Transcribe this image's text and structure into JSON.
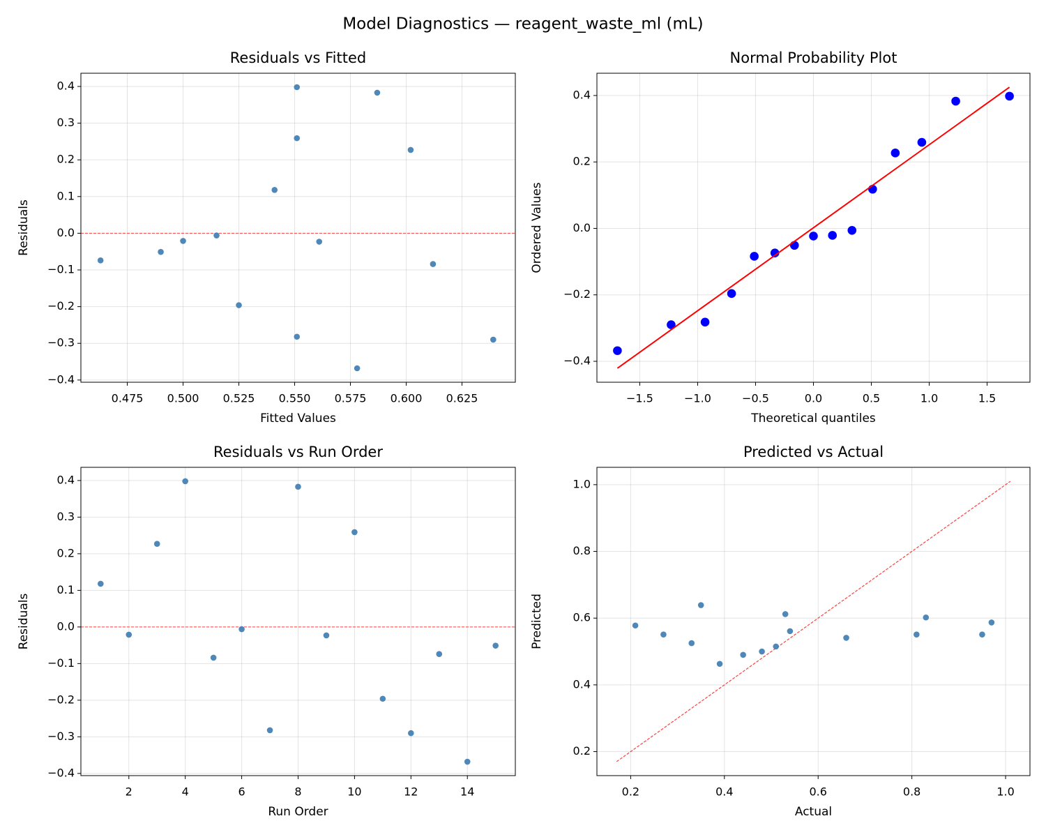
{
  "title": "Model Diagnostics — reagent_waste_ml (mL)",
  "chart_data": [
    {
      "type": "scatter",
      "title": "Residuals vs Fitted",
      "xlabel": "Fitted Values",
      "ylabel": "Residuals",
      "x": [
        0.541,
        0.5,
        0.602,
        0.551,
        0.612,
        0.515,
        0.551,
        0.587,
        0.561,
        0.551,
        0.525,
        0.639,
        0.463,
        0.578,
        0.49
      ],
      "values": [
        0.118,
        -0.021,
        0.227,
        0.398,
        -0.084,
        -0.006,
        -0.282,
        0.383,
        -0.023,
        0.259,
        -0.196,
        -0.29,
        -0.074,
        -0.368,
        -0.051
      ],
      "color": "#4682b4",
      "grid": true,
      "hline": {
        "y": 0,
        "color": "#ff0000"
      },
      "xlim": [
        0.4542,
        0.6489
      ],
      "ylim": [
        -0.406,
        0.436
      ],
      "xticks": [
        0.475,
        {
          "value": 0.5,
          "label": "0.500"
        },
        0.525,
        {
          "value": 0.55,
          "label": "0.550"
        },
        0.575,
        {
          "value": 0.6,
          "label": "0.600"
        },
        0.625
      ],
      "yticks": [
        {
          "value": -0.4,
          "label": "−0.4"
        },
        {
          "value": -0.3,
          "label": "−0.3"
        },
        {
          "value": -0.2,
          "label": "−0.2"
        },
        {
          "value": -0.1,
          "label": "−0.1"
        },
        {
          "value": 0,
          "label": "0.0"
        },
        0.1,
        0.2,
        0.3,
        0.4
      ]
    },
    {
      "type": "scatter",
      "title": "Normal Probability Plot",
      "xlabel": "Theoretical quantiles",
      "ylabel": "Ordered Values",
      "x": [
        -1.693,
        -1.229,
        -0.936,
        -0.707,
        -0.511,
        -0.333,
        -0.164,
        0,
        0.164,
        0.333,
        0.511,
        0.707,
        0.936,
        1.229,
        1.693
      ],
      "values": [
        -0.368,
        -0.29,
        -0.282,
        -0.196,
        -0.084,
        -0.074,
        -0.051,
        -0.023,
        -0.021,
        -0.006,
        0.118,
        0.227,
        0.259,
        0.383,
        0.398
      ],
      "color": "#0000ff",
      "grid": true,
      "large_markers": true,
      "fit_line": {
        "x": [
          -1.693,
          1.693
        ],
        "values": [
          -0.421,
          0.425
        ],
        "color": "#ff0000"
      },
      "xlim": [
        -1.87,
        1.87
      ],
      "ylim": [
        -0.463,
        0.467
      ],
      "xticks": [
        {
          "value": -1.5,
          "label": "−1.5"
        },
        {
          "value": -1.0,
          "label": "−1.0"
        },
        {
          "value": -0.5,
          "label": "−0.5"
        },
        {
          "value": 0,
          "label": "0.0"
        },
        0.5,
        {
          "value": 1.0,
          "label": "1.0"
        },
        1.5
      ],
      "yticks": [
        {
          "value": -0.4,
          "label": "−0.4"
        },
        {
          "value": -0.2,
          "label": "−0.2"
        },
        {
          "value": 0,
          "label": "0.0"
        },
        0.2,
        0.4
      ]
    },
    {
      "type": "scatter",
      "title": "Residuals vs Run Order",
      "xlabel": "Run Order",
      "ylabel": "Residuals",
      "x": [
        1,
        2,
        3,
        4,
        5,
        6,
        7,
        8,
        9,
        10,
        11,
        12,
        13,
        14,
        15
      ],
      "values": [
        0.118,
        -0.021,
        0.227,
        0.398,
        -0.084,
        -0.006,
        -0.282,
        0.383,
        -0.023,
        0.259,
        -0.196,
        -0.29,
        -0.074,
        -0.368,
        -0.051
      ],
      "color": "#4682b4",
      "grid": true,
      "hline": {
        "y": 0,
        "color": "#ff0000"
      },
      "xlim": [
        0.3,
        15.7
      ],
      "ylim": [
        -0.406,
        0.436
      ],
      "xticks": [
        2,
        4,
        6,
        8,
        10,
        12,
        14
      ],
      "yticks": [
        {
          "value": -0.4,
          "label": "−0.4"
        },
        {
          "value": -0.3,
          "label": "−0.3"
        },
        {
          "value": -0.2,
          "label": "−0.2"
        },
        {
          "value": -0.1,
          "label": "−0.1"
        },
        {
          "value": 0,
          "label": "0.0"
        },
        0.1,
        0.2,
        0.3,
        0.4
      ]
    },
    {
      "type": "scatter",
      "title": "Predicted vs Actual",
      "xlabel": "Actual",
      "ylabel": "Predicted",
      "x": [
        0.66,
        0.48,
        0.83,
        0.95,
        0.53,
        0.51,
        0.27,
        0.97,
        0.54,
        0.81,
        0.33,
        0.35,
        0.39,
        0.21,
        0.44
      ],
      "values": [
        0.541,
        0.5,
        0.602,
        0.551,
        0.612,
        0.515,
        0.551,
        0.587,
        0.561,
        0.551,
        0.525,
        0.639,
        0.463,
        0.578,
        0.49
      ],
      "color": "#4682b4",
      "grid": true,
      "ref_line": {
        "x": [
          0.17,
          1.01
        ],
        "values": [
          0.17,
          1.01
        ],
        "color": "#ff0000"
      },
      "xlim": [
        0.128,
        1.052
      ],
      "ylim": [
        0.128,
        1.052
      ],
      "xticks": [
        0.2,
        0.4,
        0.6,
        0.8,
        {
          "value": 1.0,
          "label": "1.0"
        }
      ],
      "yticks": [
        0.2,
        0.4,
        0.6,
        0.8,
        {
          "value": 1.0,
          "label": "1.0"
        }
      ]
    }
  ]
}
